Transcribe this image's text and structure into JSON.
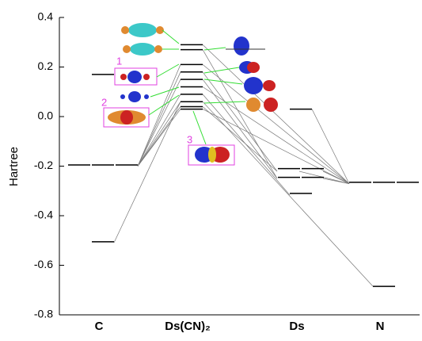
{
  "chart_data": {
    "type": "energy-level",
    "y_label": "Hartree",
    "categories": [
      "C",
      "Ds(CN)₂",
      "Ds",
      "N"
    ],
    "levels": [
      [
        0.17,
        -0.195,
        -0.195,
        -0.195,
        -0.505
      ],
      [
        0.29,
        0.27,
        0.21,
        0.18,
        0.15,
        0.12,
        0.09,
        0.06,
        0.04,
        0.03
      ],
      [
        0.03,
        -0.21,
        -0.21,
        -0.245,
        -0.245,
        -0.31
      ],
      [
        -0.265,
        -0.265,
        -0.265,
        -0.685
      ]
    ],
    "color": "#000000",
    "ylim": [
      -0.8,
      0.4
    ],
    "yticks": [
      -0.8,
      -0.6,
      -0.4,
      -0.2,
      {
        "value": 0,
        "label": "0.0"
      },
      0.2,
      0.4
    ],
    "annotations": [
      "1",
      "2",
      "3"
    ]
  }
}
